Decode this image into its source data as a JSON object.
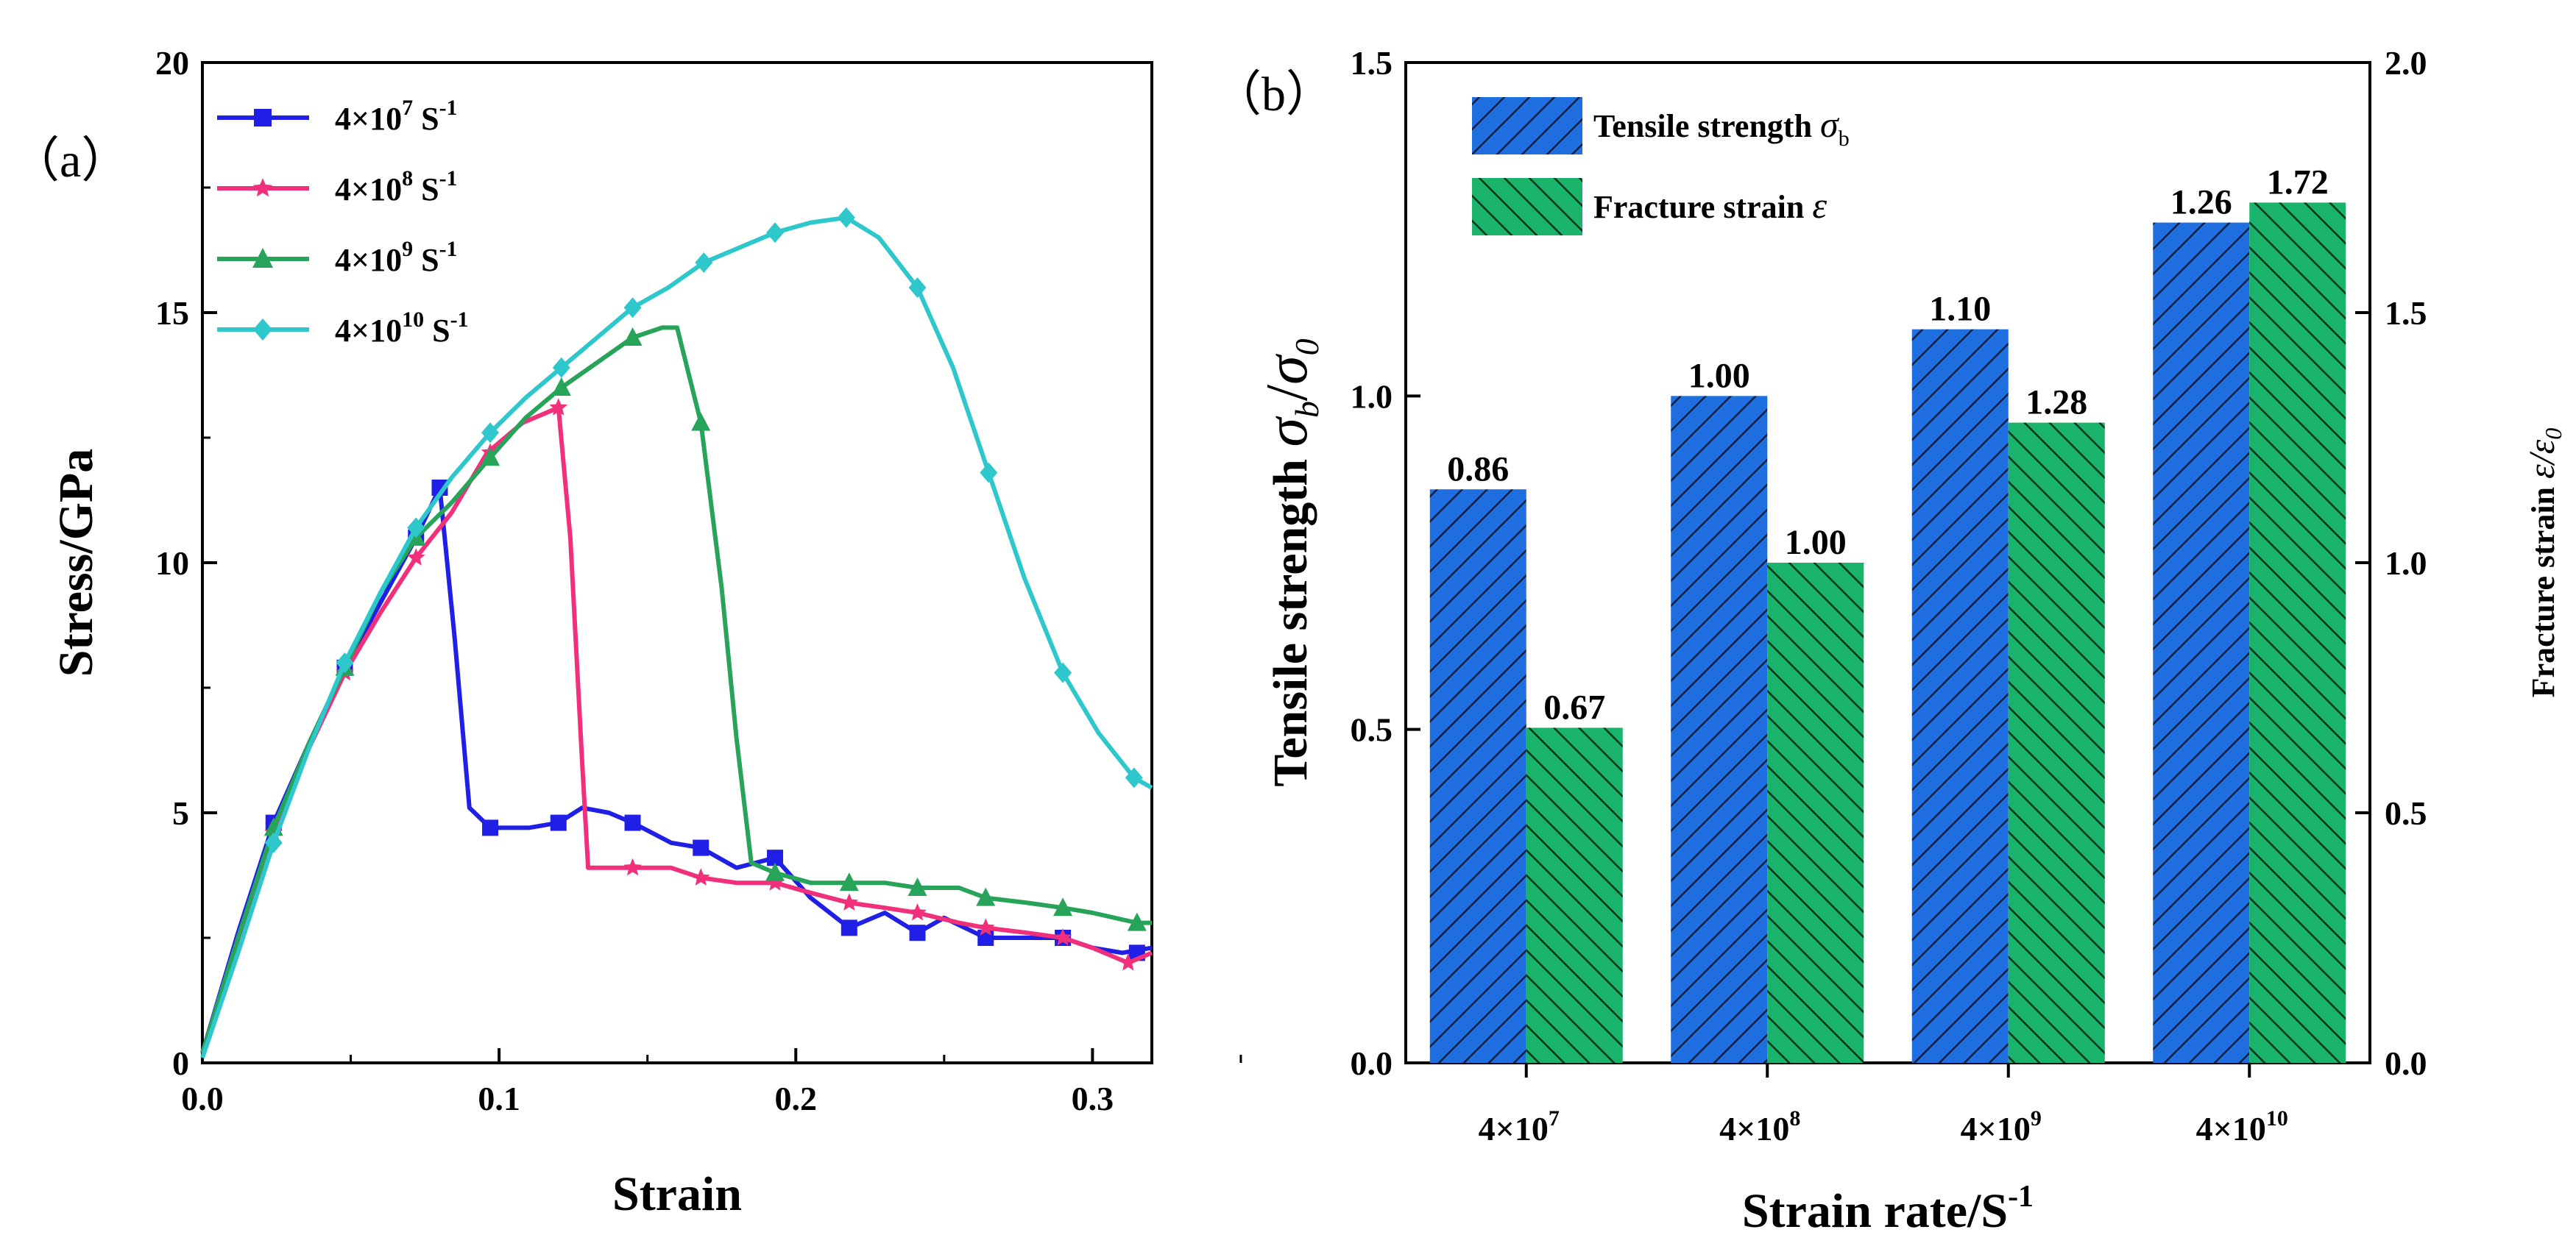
{
  "chart_data": [
    {
      "panel": "(a)",
      "type": "line",
      "xlabel": "Strain",
      "ylabel": "Stress/GPa",
      "xlim": [
        0,
        0.32
      ],
      "ylim": [
        0,
        20
      ],
      "xticks": [
        "0.0",
        "0.1",
        "0.2",
        "0.3"
      ],
      "yticks": [
        "0",
        "5",
        "10",
        "15",
        "20"
      ],
      "series": [
        {
          "name": "4×10⁷ S⁻¹",
          "color": "#1f1fe6",
          "marker": "square",
          "points": [
            [
              0,
              0.2
            ],
            [
              0.012,
              2.6
            ],
            [
              0.024,
              4.8
            ],
            [
              0.036,
              6.4
            ],
            [
              0.048,
              7.9
            ],
            [
              0.06,
              9.2
            ],
            [
              0.072,
              10.5
            ],
            [
              0.08,
              11.5
            ],
            [
              0.085,
              8.5
            ],
            [
              0.09,
              5.1
            ],
            [
              0.097,
              4.7
            ],
            [
              0.11,
              4.7
            ],
            [
              0.12,
              4.8
            ],
            [
              0.128,
              5.1
            ],
            [
              0.137,
              5.0
            ],
            [
              0.145,
              4.8
            ],
            [
              0.158,
              4.4
            ],
            [
              0.168,
              4.3
            ],
            [
              0.18,
              3.9
            ],
            [
              0.193,
              4.1
            ],
            [
              0.205,
              3.3
            ],
            [
              0.218,
              2.7
            ],
            [
              0.23,
              3.0
            ],
            [
              0.241,
              2.6
            ],
            [
              0.25,
              2.9
            ],
            [
              0.264,
              2.5
            ],
            [
              0.278,
              2.5
            ],
            [
              0.29,
              2.5
            ],
            [
              0.3,
              2.3
            ],
            [
              0.31,
              2.2
            ],
            [
              0.32,
              2.3
            ]
          ],
          "markers": [
            [
              0.024,
              4.8
            ],
            [
              0.048,
              7.9
            ],
            [
              0.072,
              10.5
            ],
            [
              0.08,
              11.5
            ],
            [
              0.097,
              4.7
            ],
            [
              0.12,
              4.8
            ],
            [
              0.145,
              4.8
            ],
            [
              0.168,
              4.3
            ],
            [
              0.193,
              4.1
            ],
            [
              0.218,
              2.7
            ],
            [
              0.241,
              2.6
            ],
            [
              0.264,
              2.5
            ],
            [
              0.29,
              2.5
            ],
            [
              0.315,
              2.2
            ]
          ]
        },
        {
          "name": "4×10⁸ S⁻¹",
          "color": "#f0307a",
          "marker": "star",
          "points": [
            [
              0,
              0.2
            ],
            [
              0.012,
              2.4
            ],
            [
              0.024,
              4.6
            ],
            [
              0.036,
              6.3
            ],
            [
              0.048,
              7.8
            ],
            [
              0.06,
              9.0
            ],
            [
              0.072,
              10.1
            ],
            [
              0.084,
              11.0
            ],
            [
              0.096,
              12.2
            ],
            [
              0.108,
              12.8
            ],
            [
              0.12,
              13.1
            ],
            [
              0.124,
              10.5
            ],
            [
              0.128,
              6.0
            ],
            [
              0.13,
              3.9
            ],
            [
              0.14,
              3.9
            ],
            [
              0.145,
              3.9
            ],
            [
              0.158,
              3.9
            ],
            [
              0.168,
              3.7
            ],
            [
              0.18,
              3.6
            ],
            [
              0.193,
              3.6
            ],
            [
              0.205,
              3.4
            ],
            [
              0.218,
              3.2
            ],
            [
              0.23,
              3.1
            ],
            [
              0.241,
              3.0
            ],
            [
              0.255,
              2.8
            ],
            [
              0.264,
              2.7
            ],
            [
              0.278,
              2.6
            ],
            [
              0.29,
              2.5
            ],
            [
              0.3,
              2.3
            ],
            [
              0.312,
              2.0
            ],
            [
              0.32,
              2.2
            ]
          ],
          "markers": [
            [
              0.024,
              4.6
            ],
            [
              0.048,
              7.8
            ],
            [
              0.072,
              10.1
            ],
            [
              0.097,
              12.2
            ],
            [
              0.12,
              13.1
            ],
            [
              0.145,
              3.9
            ],
            [
              0.168,
              3.7
            ],
            [
              0.193,
              3.6
            ],
            [
              0.218,
              3.2
            ],
            [
              0.241,
              3.0
            ],
            [
              0.264,
              2.7
            ],
            [
              0.29,
              2.5
            ],
            [
              0.312,
              2.0
            ]
          ]
        },
        {
          "name": "4×10⁹ S⁻¹",
          "color": "#28a35a",
          "marker": "triangle",
          "points": [
            [
              0,
              0.2
            ],
            [
              0.012,
              2.5
            ],
            [
              0.024,
              4.7
            ],
            [
              0.036,
              6.4
            ],
            [
              0.048,
              7.9
            ],
            [
              0.06,
              9.4
            ],
            [
              0.072,
              10.5
            ],
            [
              0.084,
              11.2
            ],
            [
              0.097,
              12.1
            ],
            [
              0.109,
              12.9
            ],
            [
              0.121,
              13.5
            ],
            [
              0.133,
              14.0
            ],
            [
              0.145,
              14.5
            ],
            [
              0.155,
              14.7
            ],
            [
              0.16,
              14.7
            ],
            [
              0.168,
              12.8
            ],
            [
              0.175,
              9.5
            ],
            [
              0.18,
              6.5
            ],
            [
              0.185,
              4.0
            ],
            [
              0.193,
              3.8
            ],
            [
              0.205,
              3.6
            ],
            [
              0.218,
              3.6
            ],
            [
              0.23,
              3.6
            ],
            [
              0.241,
              3.5
            ],
            [
              0.255,
              3.5
            ],
            [
              0.264,
              3.3
            ],
            [
              0.278,
              3.2
            ],
            [
              0.29,
              3.1
            ],
            [
              0.3,
              3.0
            ],
            [
              0.315,
              2.8
            ],
            [
              0.32,
              2.8
            ]
          ],
          "markers": [
            [
              0.024,
              4.7
            ],
            [
              0.048,
              7.9
            ],
            [
              0.072,
              10.5
            ],
            [
              0.097,
              12.1
            ],
            [
              0.121,
              13.5
            ],
            [
              0.145,
              14.5
            ],
            [
              0.168,
              12.8
            ],
            [
              0.193,
              3.8
            ],
            [
              0.218,
              3.6
            ],
            [
              0.241,
              3.5
            ],
            [
              0.264,
              3.3
            ],
            [
              0.29,
              3.1
            ],
            [
              0.315,
              2.8
            ]
          ]
        },
        {
          "name": "4×10¹⁰ S⁻¹",
          "color": "#2ec7cc",
          "marker": "diamond",
          "points": [
            [
              0,
              0.1
            ],
            [
              0.012,
              2.2
            ],
            [
              0.024,
              4.4
            ],
            [
              0.036,
              6.3
            ],
            [
              0.048,
              8.0
            ],
            [
              0.06,
              9.4
            ],
            [
              0.072,
              10.7
            ],
            [
              0.084,
              11.7
            ],
            [
              0.097,
              12.6
            ],
            [
              0.109,
              13.3
            ],
            [
              0.121,
              13.9
            ],
            [
              0.133,
              14.5
            ],
            [
              0.145,
              15.1
            ],
            [
              0.157,
              15.5
            ],
            [
              0.169,
              16.0
            ],
            [
              0.181,
              16.3
            ],
            [
              0.193,
              16.6
            ],
            [
              0.205,
              16.8
            ],
            [
              0.217,
              16.9
            ],
            [
              0.228,
              16.5
            ],
            [
              0.241,
              15.5
            ],
            [
              0.253,
              13.9
            ],
            [
              0.265,
              11.8
            ],
            [
              0.277,
              9.7
            ],
            [
              0.29,
              7.8
            ],
            [
              0.302,
              6.6
            ],
            [
              0.314,
              5.7
            ],
            [
              0.32,
              5.5
            ]
          ],
          "markers": [
            [
              0.024,
              4.4
            ],
            [
              0.048,
              8.0
            ],
            [
              0.072,
              10.7
            ],
            [
              0.097,
              12.6
            ],
            [
              0.121,
              13.9
            ],
            [
              0.145,
              15.1
            ],
            [
              0.169,
              16.0
            ],
            [
              0.193,
              16.6
            ],
            [
              0.217,
              16.9
            ],
            [
              0.241,
              15.5
            ],
            [
              0.265,
              11.8
            ],
            [
              0.29,
              7.8
            ],
            [
              0.314,
              5.7
            ]
          ]
        }
      ]
    },
    {
      "panel": "(b)",
      "type": "bar",
      "xlabel": "Strain rate/S⁻¹",
      "ylabel_left": "Tensile strength σb/σ0",
      "ylabel_right": "Fracture strain ε/ε0",
      "categories": [
        "4×10⁷",
        "4×10⁸",
        "4×10⁹",
        "4×10¹⁰"
      ],
      "ylim_left": [
        0,
        1.5
      ],
      "ylim_right": [
        0,
        2.0
      ],
      "yticks_left": [
        "0.0",
        "0.5",
        "1.0",
        "1.5"
      ],
      "yticks_right": [
        "0.0",
        "0.5",
        "1.0",
        "1.5",
        "2.0"
      ],
      "series": [
        {
          "name": "Tensile strength σb",
          "axis": "left",
          "color": "#1f6fe0",
          "hatch": "/",
          "values": [
            0.86,
            1.0,
            1.1,
            1.26
          ],
          "labels": [
            "0.86",
            "1.00",
            "1.10",
            "1.26"
          ]
        },
        {
          "name": "Fracture strain ε",
          "axis": "right",
          "color": "#19b36b",
          "hatch": "\\",
          "values": [
            0.67,
            1.0,
            1.28,
            1.72
          ],
          "labels": [
            "0.67",
            "1.00",
            "1.28",
            "1.72"
          ]
        }
      ]
    }
  ]
}
